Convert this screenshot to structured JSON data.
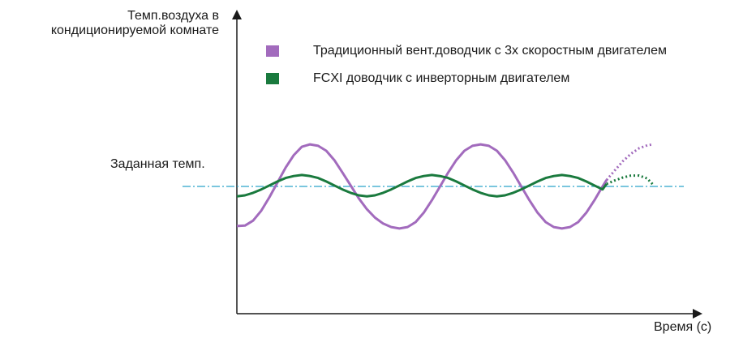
{
  "chart_data": {
    "type": "line",
    "ylabel": [
      "Темп.воздуха в",
      "кондиционируемой комнате"
    ],
    "xlabel": "Время (с)",
    "annotations": {
      "setpoint_label": "Заданная темп."
    },
    "setpoint": {
      "value": 0,
      "color": "#2aa4c9",
      "style": "dash-dot"
    },
    "xlim": [
      0,
      5.5
    ],
    "ylim": [
      -1.8,
      1.8
    ],
    "grid": false,
    "legend_position": "top",
    "series": [
      {
        "name": "Традиционный вент.доводчик с 3х скоростным двигателем",
        "color": "#a26bbd",
        "solid": {
          "x": [
            0,
            0.1,
            0.2,
            0.3,
            0.4,
            0.5,
            0.6,
            0.7,
            0.8,
            0.9,
            1.0,
            1.1,
            1.2,
            1.3,
            1.4,
            1.5,
            1.6,
            1.7,
            1.8,
            1.9,
            2.0,
            2.1,
            2.2,
            2.3,
            2.4,
            2.5,
            2.6,
            2.7,
            2.8,
            2.9,
            3.0,
            3.1,
            3.2,
            3.3,
            3.4,
            3.5,
            3.6,
            3.7,
            3.8,
            3.9,
            4.0,
            4.1,
            4.2,
            4.3,
            4.4,
            4.5,
            4.55
          ],
          "y": [
            -0.8,
            -0.79,
            -0.69,
            -0.49,
            -0.22,
            0.08,
            0.38,
            0.63,
            0.8,
            0.85,
            0.82,
            0.72,
            0.53,
            0.28,
            0.02,
            -0.24,
            -0.46,
            -0.63,
            -0.75,
            -0.82,
            -0.85,
            -0.82,
            -0.72,
            -0.53,
            -0.28,
            0.0,
            0.28,
            0.53,
            0.72,
            0.82,
            0.85,
            0.82,
            0.72,
            0.53,
            0.28,
            0.0,
            -0.28,
            -0.53,
            -0.72,
            -0.82,
            -0.85,
            -0.82,
            -0.72,
            -0.53,
            -0.28,
            0.0,
            0.13
          ]
        },
        "dotted": {
          "x": [
            4.55,
            4.65,
            4.75,
            4.85,
            4.95,
            5.05,
            5.12
          ],
          "y": [
            0.13,
            0.32,
            0.51,
            0.66,
            0.77,
            0.83,
            0.85
          ]
        }
      },
      {
        "name": "FCXI доводчик с инверторным двигателем",
        "color": "#1a7a3e",
        "solid": {
          "x": [
            0,
            0.1,
            0.2,
            0.3,
            0.4,
            0.5,
            0.6,
            0.7,
            0.8,
            0.9,
            1.0,
            1.1,
            1.2,
            1.3,
            1.4,
            1.5,
            1.6,
            1.7,
            1.8,
            1.9,
            2.0,
            2.1,
            2.2,
            2.3,
            2.4,
            2.5,
            2.6,
            2.7,
            2.8,
            2.9,
            3.0,
            3.1,
            3.2,
            3.3,
            3.4,
            3.5,
            3.6,
            3.7,
            3.8,
            3.9,
            4.0,
            4.1,
            4.2,
            4.3,
            4.4,
            4.5,
            4.55
          ],
          "y": [
            -0.2,
            -0.18,
            -0.13,
            -0.06,
            0.02,
            0.1,
            0.17,
            0.21,
            0.23,
            0.21,
            0.17,
            0.1,
            0.02,
            -0.06,
            -0.13,
            -0.18,
            -0.2,
            -0.18,
            -0.13,
            -0.06,
            0.02,
            0.1,
            0.17,
            0.21,
            0.23,
            0.21,
            0.17,
            0.1,
            0.02,
            -0.06,
            -0.13,
            -0.18,
            -0.2,
            -0.18,
            -0.13,
            -0.06,
            0.02,
            0.1,
            0.17,
            0.21,
            0.23,
            0.21,
            0.17,
            0.1,
            0.02,
            -0.06,
            0.05
          ]
        },
        "dotted": {
          "x": [
            4.55,
            4.65,
            4.75,
            4.85,
            4.95,
            5.05,
            5.12
          ],
          "y": [
            0.05,
            0.12,
            0.18,
            0.22,
            0.22,
            0.16,
            0.04
          ]
        }
      }
    ]
  }
}
